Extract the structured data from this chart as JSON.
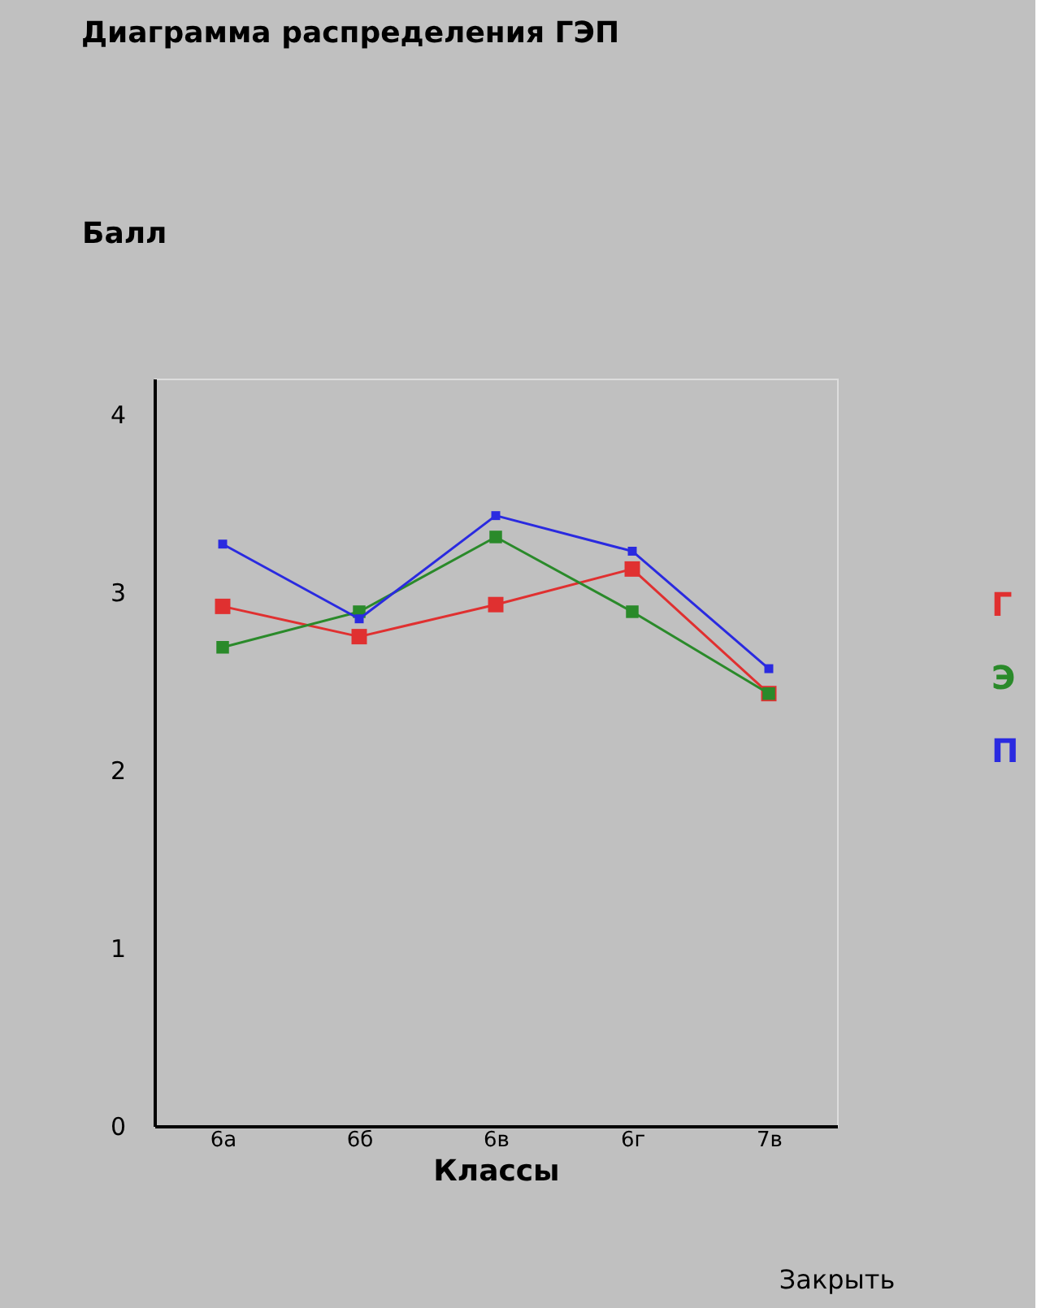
{
  "chart_data": {
    "type": "line",
    "title": "Диаграмма распределения ГЭП",
    "ylabel": "Балл",
    "xlabel": "Классы",
    "categories": [
      "6а",
      "6б",
      "6в",
      "6г",
      "7в"
    ],
    "series": [
      {
        "name": "Г",
        "color": "#e03030",
        "values": [
          2.92,
          2.75,
          2.93,
          3.13,
          2.43
        ]
      },
      {
        "name": "Э",
        "color": "#2a8a2a",
        "values": [
          2.69,
          2.89,
          3.31,
          2.89,
          2.43
        ]
      },
      {
        "name": "П",
        "color": "#2a2ae0",
        "values": [
          3.27,
          2.85,
          3.43,
          3.23,
          2.57
        ]
      }
    ],
    "ylim": [
      0,
      4.2
    ],
    "yticks": [
      0,
      1,
      2,
      3,
      4
    ],
    "grid": false,
    "legend": "right",
    "marker": "square",
    "line_style": "solid",
    "annotations": [
      "Закрыть"
    ]
  }
}
